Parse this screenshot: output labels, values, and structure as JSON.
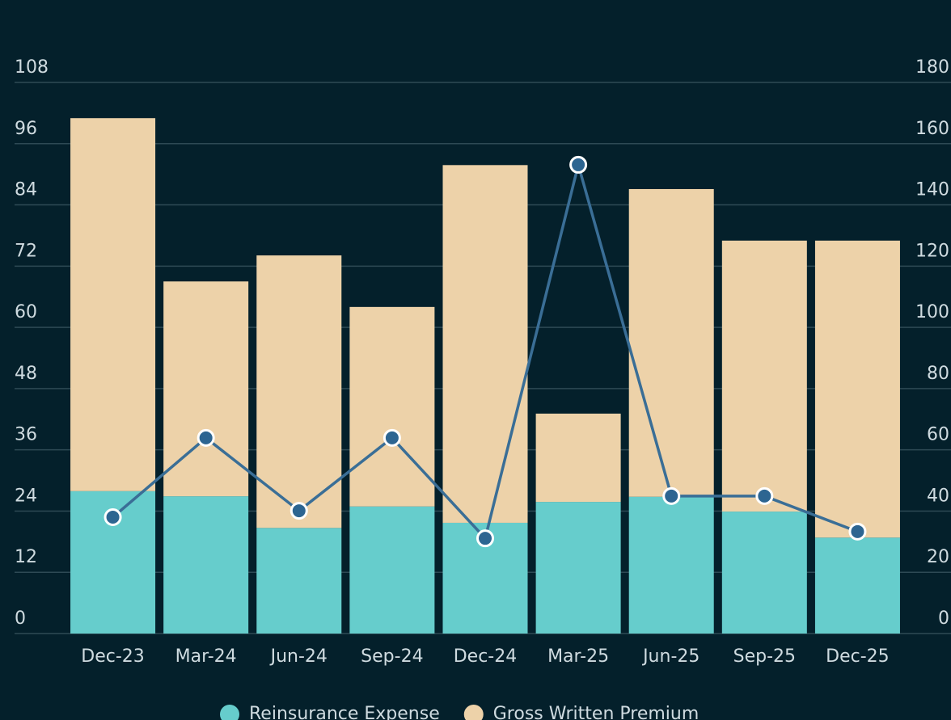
{
  "chart_data": {
    "type": "bar",
    "categories": [
      "Dec-23",
      "Mar-24",
      "Jun-24",
      "Sep-24",
      "Dec-24",
      "Mar-25",
      "Jun-25",
      "Sep-25",
      "Dec-25"
    ],
    "stacked": true,
    "series": [
      {
        "name": "Reinsurance Expense",
        "color": "#66cdcc",
        "values": [
          27.9,
          26.9,
          20.7,
          24.9,
          21.7,
          25.8,
          26.8,
          23.9,
          18.8
        ]
      },
      {
        "name": "Gross Written Premium",
        "color": "#edd2a9",
        "values": [
          73.1,
          42.1,
          53.4,
          39.1,
          70.1,
          17.3,
          60.3,
          53.1,
          58.2
        ]
      },
      {
        "type": "line",
        "axis": "y2",
        "color": "#3a6e96",
        "values": [
          38.0,
          63.9,
          40.1,
          63.9,
          31.1,
          153.1,
          44.9,
          44.9,
          33.3
        ]
      }
    ],
    "ylim": [
      0,
      108
    ],
    "yticks": [
      0,
      12,
      24,
      36,
      48,
      60,
      72,
      84,
      96,
      108
    ],
    "y2lim": [
      0,
      180
    ],
    "y2ticks": [
      0,
      20,
      40,
      60,
      80,
      100,
      120,
      140,
      160,
      180
    ],
    "grid": true,
    "legend": "bottom"
  }
}
